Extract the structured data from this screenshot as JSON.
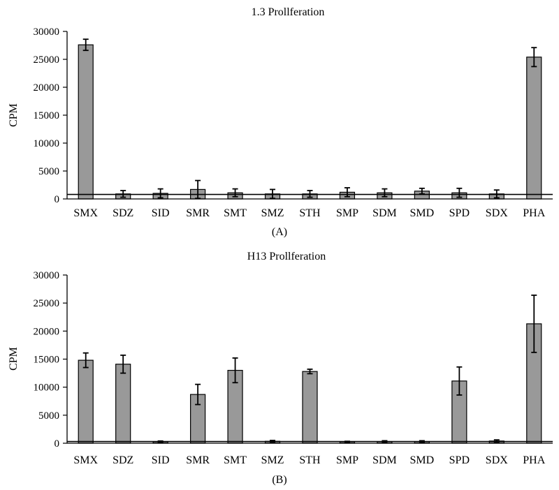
{
  "chart_data": [
    {
      "type": "bar",
      "title": "1.3 Prollferation",
      "panel_label": "(A)",
      "ylabel": "CPM",
      "xlabel": "",
      "ylim": [
        0,
        30000
      ],
      "yticks": [
        0,
        5000,
        10000,
        15000,
        20000,
        25000,
        30000
      ],
      "tick_labels": [
        "0",
        "5000",
        "10000",
        "15000",
        "20000",
        "25000",
        "30000"
      ],
      "grid": false,
      "categories": [
        "SMX",
        "SDZ",
        "SID",
        "SMR",
        "SMT",
        "SMZ",
        "STH",
        "SMP",
        "SDM",
        "SMD",
        "SPD",
        "SDX",
        "PHA"
      ],
      "values": [
        27600,
        900,
        1000,
        1700,
        1100,
        900,
        900,
        1200,
        1100,
        1400,
        1100,
        900,
        25400
      ],
      "errors": [
        1000,
        600,
        800,
        1600,
        700,
        800,
        600,
        800,
        700,
        500,
        800,
        700,
        1700
      ],
      "reference_line": 800,
      "bar_color": "#999999"
    },
    {
      "type": "bar",
      "title": "H13 Prollferation",
      "panel_label": "(B)",
      "ylabel": "CPM",
      "xlabel": "",
      "ylim": [
        0,
        30000
      ],
      "yticks": [
        0,
        5000,
        10000,
        15000,
        20000,
        25000,
        30000
      ],
      "tick_labels": [
        "0",
        "5000",
        "10000",
        "15000",
        "20000",
        "25000",
        "30000"
      ],
      "grid": false,
      "categories": [
        "SMX",
        "SDZ",
        "SID",
        "SMR",
        "SMT",
        "SMZ",
        "STH",
        "SMP",
        "SDM",
        "SMD",
        "SPD",
        "SDX",
        "PHA"
      ],
      "values": [
        14800,
        14100,
        250,
        8700,
        13000,
        350,
        12800,
        250,
        300,
        300,
        11100,
        400,
        21300
      ],
      "errors": [
        1300,
        1600,
        150,
        1800,
        2200,
        150,
        400,
        100,
        150,
        150,
        2500,
        200,
        5100
      ],
      "reference_line": 300,
      "bar_color": "#999999"
    }
  ]
}
